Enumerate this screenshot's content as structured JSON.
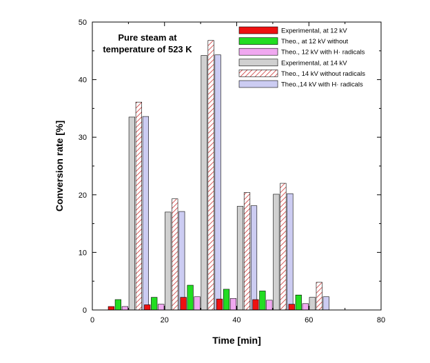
{
  "chart_data": {
    "type": "bar",
    "title": "",
    "annotation": [
      "Pure steam at",
      "temperature of 523 K"
    ],
    "xlabel": "Time [min]",
    "ylabel": "Conversion rate [%]",
    "xlim": [
      0,
      80
    ],
    "ylim": [
      0,
      50
    ],
    "xticks": [
      "0",
      "20",
      "40",
      "60",
      "80"
    ],
    "yticks": [
      "0",
      "10",
      "20",
      "30",
      "40",
      "50"
    ],
    "grid": false,
    "legend_position": "top-right",
    "categories": [
      10,
      20,
      30,
      40,
      50,
      60
    ],
    "series": [
      {
        "name": "Experimental, at 12 kV",
        "values": [
          0.6,
          0.9,
          2.2,
          1.9,
          1.8,
          1.0
        ],
        "color": "#ee1111",
        "pattern": "solid"
      },
      {
        "name": "Theo., at 12 kV without",
        "values": [
          1.8,
          2.2,
          4.3,
          3.6,
          3.3,
          2.6
        ],
        "color": "#22dd22",
        "pattern": "solid"
      },
      {
        "name": "Theo., 12 kV with H· radicals",
        "values": [
          0.6,
          1.0,
          2.3,
          2.0,
          1.7,
          1.1
        ],
        "color": "#f0a8f0",
        "pattern": "solid"
      },
      {
        "name": "Experimental, at 14 kV",
        "values": [
          33.5,
          17.0,
          44.2,
          18.0,
          20.1,
          2.2
        ],
        "color": "#d0d0d0",
        "pattern": "solid"
      },
      {
        "name": "Theo., 14 kV without radicals",
        "values": [
          36.1,
          19.3,
          46.8,
          20.4,
          22.0,
          4.8
        ],
        "color": "#cc3333",
        "pattern": "hatch"
      },
      {
        "name": "Theo.,14 kV with H· radicals",
        "values": [
          33.6,
          17.1,
          44.3,
          18.1,
          20.2,
          2.3
        ],
        "color": "#ccccf2",
        "pattern": "solid"
      }
    ]
  }
}
